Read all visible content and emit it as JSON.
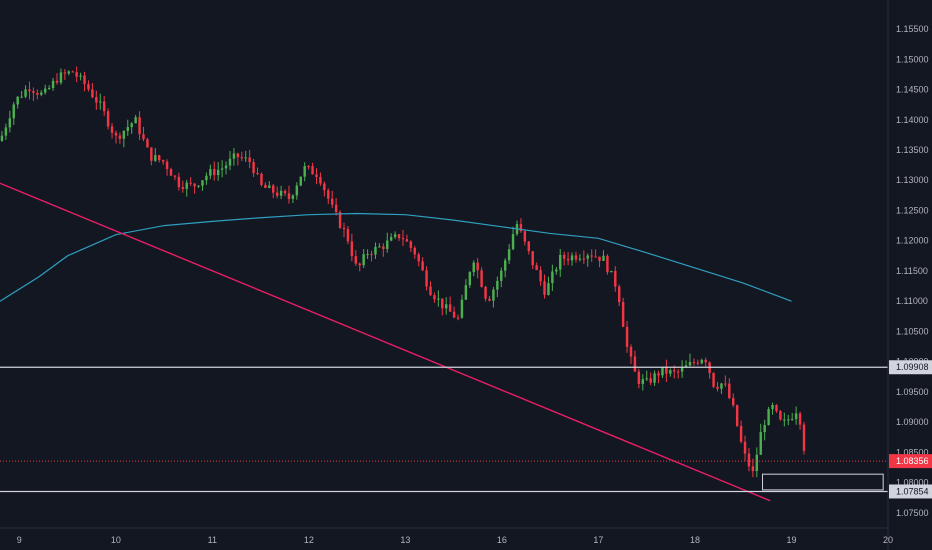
{
  "chart_data": {
    "type": "candlestick",
    "x_axis": {
      "ticks": [
        {
          "label": "9",
          "x": 0.5
        },
        {
          "label": "10",
          "x": 1.5
        },
        {
          "label": "11",
          "x": 2.5
        },
        {
          "label": "12",
          "x": 3.5
        },
        {
          "label": "13",
          "x": 4.5
        },
        {
          "label": "16",
          "x": 5.5
        },
        {
          "label": "17",
          "x": 6.5
        },
        {
          "label": "18",
          "x": 7.5
        },
        {
          "label": "19",
          "x": 8.5
        },
        {
          "label": "20",
          "x": 9.5
        }
      ],
      "range": [
        0.3,
        9.5
      ]
    },
    "y_axis": {
      "ticks": [
        "1.15500",
        "1.15000",
        "1.14500",
        "1.14000",
        "1.13500",
        "1.13000",
        "1.12500",
        "1.12000",
        "1.11500",
        "1.11000",
        "1.10500",
        "1.10000",
        "1.09500",
        "1.09000",
        "1.08500",
        "1.08000",
        "1.07500"
      ],
      "range": [
        1.0725,
        1.1598
      ]
    },
    "candles_xrange": [
      0.3,
      8.65
    ],
    "price_path": [
      [
        0.3,
        1.1365
      ],
      [
        0.45,
        1.143
      ],
      [
        0.6,
        1.1455
      ],
      [
        0.75,
        1.144
      ],
      [
        0.9,
        1.147
      ],
      [
        1.05,
        1.148
      ],
      [
        1.2,
        1.1455
      ],
      [
        1.35,
        1.142
      ],
      [
        1.5,
        1.137
      ],
      [
        1.7,
        1.14
      ],
      [
        1.85,
        1.134
      ],
      [
        2.0,
        1.133
      ],
      [
        2.15,
        1.1295
      ],
      [
        2.3,
        1.129
      ],
      [
        2.45,
        1.131
      ],
      [
        2.6,
        1.132
      ],
      [
        2.75,
        1.134
      ],
      [
        2.9,
        1.133
      ],
      [
        3.0,
        1.129
      ],
      [
        3.15,
        1.128
      ],
      [
        3.3,
        1.127
      ],
      [
        3.45,
        1.132
      ],
      [
        3.6,
        1.131
      ],
      [
        3.75,
        1.125
      ],
      [
        3.9,
        1.1205
      ],
      [
        4.0,
        1.115
      ],
      [
        4.1,
        1.118
      ],
      [
        4.25,
        1.119
      ],
      [
        4.45,
        1.121
      ],
      [
        4.6,
        1.118
      ],
      [
        4.75,
        1.112
      ],
      [
        4.9,
        1.109
      ],
      [
        5.05,
        1.107
      ],
      [
        5.2,
        1.1175
      ],
      [
        5.35,
        1.11
      ],
      [
        5.5,
        1.115
      ],
      [
        5.65,
        1.123
      ],
      [
        5.8,
        1.117
      ],
      [
        5.95,
        1.1115
      ],
      [
        6.1,
        1.117
      ],
      [
        6.25,
        1.1175
      ],
      [
        6.4,
        1.118
      ],
      [
        6.55,
        1.117
      ],
      [
        6.7,
        1.112
      ],
      [
        6.8,
        1.102
      ],
      [
        6.9,
        1.097
      ],
      [
        7.0,
        1.0965
      ],
      [
        7.15,
        1.0985
      ],
      [
        7.3,
        1.098
      ],
      [
        7.45,
        1.0995
      ],
      [
        7.6,
        1.101
      ],
      [
        7.7,
        1.096
      ],
      [
        7.8,
        1.0965
      ],
      [
        7.9,
        1.092
      ],
      [
        8.0,
        1.085
      ],
      [
        8.1,
        1.0815
      ],
      [
        8.2,
        1.0895
      ],
      [
        8.3,
        1.0925
      ],
      [
        8.4,
        1.0895
      ],
      [
        8.5,
        1.091
      ],
      [
        8.57,
        1.0925
      ],
      [
        8.65,
        1.0836
      ]
    ],
    "moving_average": [
      [
        0.3,
        1.11
      ],
      [
        0.7,
        1.114
      ],
      [
        1.0,
        1.1175
      ],
      [
        1.5,
        1.121
      ],
      [
        2.0,
        1.1225
      ],
      [
        2.5,
        1.1232
      ],
      [
        3.0,
        1.1238
      ],
      [
        3.5,
        1.1243
      ],
      [
        4.0,
        1.1245
      ],
      [
        4.5,
        1.1243
      ],
      [
        5.0,
        1.1234
      ],
      [
        5.5,
        1.1223
      ],
      [
        6.0,
        1.1212
      ],
      [
        6.5,
        1.1204
      ],
      [
        7.0,
        1.118
      ],
      [
        7.5,
        1.1155
      ],
      [
        8.0,
        1.113
      ],
      [
        8.5,
        1.11
      ]
    ],
    "trendline": {
      "start": [
        0.3,
        1.1295
      ],
      "end": [
        8.28,
        1.077
      ]
    },
    "horizontal_lines": [
      {
        "value": 1.09908,
        "label": "1.09908",
        "color": "#d1d4dc"
      },
      {
        "value": 1.07854,
        "label": "1.07854",
        "color": "#d1d4dc"
      }
    ],
    "last_price": {
      "value": 1.08356,
      "label": "1.08356",
      "color": "#f23645"
    },
    "zone": {
      "x": [
        8.2,
        9.45
      ],
      "y": [
        1.0788,
        1.0814
      ]
    },
    "colors": {
      "background": "#131722",
      "up": "#26a69a",
      "up_candle": "#4caf50",
      "down": "#f23645",
      "moving_average": "#2e9fbf",
      "trendline": "#e91e63",
      "axis_text": "#b2b5be",
      "zone": "#d1d4dc"
    }
  }
}
